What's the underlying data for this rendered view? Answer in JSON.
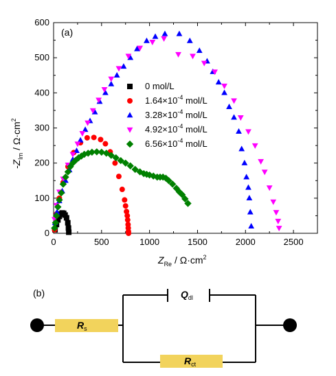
{
  "chart_data": {
    "type": "scatter",
    "panel_label": "(a)",
    "xlabel_main": "Z",
    "xlabel_sub": "Re",
    "xlabel_unit": " / Ω·cm",
    "xlabel_sup": "2",
    "ylabel_prefix": "-Z",
    "ylabel_sub": "Im",
    "ylabel_unit": " / Ω·cm",
    "ylabel_sup": "2",
    "xlim": [
      0,
      2750
    ],
    "ylim": [
      0,
      600
    ],
    "x_ticks": [
      0,
      500,
      1000,
      1500,
      2000,
      2500
    ],
    "y_ticks": [
      0,
      100,
      200,
      300,
      400,
      500,
      600
    ],
    "x_tick_labels": [
      "0",
      "500",
      "1000",
      "1500",
      "2000",
      "2500"
    ],
    "y_tick_labels": [
      "0",
      "100",
      "200",
      "300",
      "400",
      "500",
      "600"
    ],
    "series": [
      {
        "name": "0 mol/L",
        "name_base": "0 mol/L",
        "name_exp": "",
        "name_tail": "",
        "marker": "square",
        "color": "#000000",
        "points": [
          [
            15,
            10
          ],
          [
            30,
            25
          ],
          [
            45,
            38
          ],
          [
            60,
            48
          ],
          [
            75,
            55
          ],
          [
            90,
            58
          ],
          [
            105,
            57
          ],
          [
            120,
            52
          ],
          [
            135,
            44
          ],
          [
            148,
            30
          ],
          [
            155,
            15
          ],
          [
            158,
            3
          ]
        ]
      },
      {
        "name": "1.64×10-4 mol/L",
        "name_base": "1.64×10",
        "name_exp": "-4",
        "name_tail": " mol/L",
        "marker": "circle",
        "color": "#ff0000",
        "points": [
          [
            10,
            10
          ],
          [
            30,
            55
          ],
          [
            60,
            100
          ],
          [
            100,
            145
          ],
          [
            150,
            190
          ],
          [
            210,
            230
          ],
          [
            280,
            258
          ],
          [
            350,
            272
          ],
          [
            420,
            273
          ],
          [
            490,
            267
          ],
          [
            540,
            255
          ],
          [
            590,
            232
          ],
          [
            640,
            200
          ],
          [
            680,
            162
          ],
          [
            715,
            125
          ],
          [
            740,
            95
          ],
          [
            750,
            78
          ],
          [
            760,
            62
          ],
          [
            768,
            50
          ],
          [
            772,
            38
          ],
          [
            776,
            25
          ],
          [
            778,
            15
          ],
          [
            780,
            5
          ],
          [
            781,
            0
          ]
        ]
      },
      {
        "name": "3.28×10-4 mol/L",
        "name_base": "3.28×10",
        "name_exp": "-4",
        "name_tail": " mol/L",
        "marker": "triangle-up",
        "color": "#0000ff",
        "points": [
          [
            15,
            30
          ],
          [
            35,
            60
          ],
          [
            60,
            92
          ],
          [
            90,
            120
          ],
          [
            125,
            150
          ],
          [
            165,
            180
          ],
          [
            200,
            210
          ],
          [
            240,
            235
          ],
          [
            280,
            265
          ],
          [
            330,
            295
          ],
          [
            380,
            320
          ],
          [
            430,
            345
          ],
          [
            480,
            375
          ],
          [
            540,
            400
          ],
          [
            600,
            425
          ],
          [
            660,
            450
          ],
          [
            730,
            475
          ],
          [
            800,
            500
          ],
          [
            870,
            525
          ],
          [
            970,
            548
          ],
          [
            1060,
            560
          ],
          [
            1160,
            568
          ],
          [
            1310,
            568
          ],
          [
            1420,
            548
          ],
          [
            1520,
            520
          ],
          [
            1600,
            490
          ],
          [
            1660,
            460
          ],
          [
            1720,
            430
          ],
          [
            1780,
            400
          ],
          [
            1830,
            360
          ],
          [
            1880,
            330
          ],
          [
            1930,
            290
          ],
          [
            1960,
            240
          ],
          [
            1990,
            200
          ],
          [
            2010,
            160
          ],
          [
            2030,
            130
          ],
          [
            2040,
            100
          ],
          [
            2050,
            60
          ],
          [
            2060,
            20
          ]
        ]
      },
      {
        "name": "4.92×10-4 mol/L",
        "name_base": "4.92×10",
        "name_exp": "-4",
        "name_tail": " mol/L",
        "marker": "triangle-down",
        "color": "#ff00ff",
        "points": [
          [
            10,
            40
          ],
          [
            30,
            80
          ],
          [
            60,
            118
          ],
          [
            100,
            155
          ],
          [
            150,
            195
          ],
          [
            200,
            225
          ],
          [
            250,
            255
          ],
          [
            300,
            285
          ],
          [
            355,
            315
          ],
          [
            410,
            350
          ],
          [
            470,
            380
          ],
          [
            530,
            410
          ],
          [
            600,
            440
          ],
          [
            680,
            470
          ],
          [
            780,
            505
          ],
          [
            900,
            528
          ],
          [
            1030,
            545
          ],
          [
            1150,
            555
          ],
          [
            1300,
            510
          ],
          [
            1450,
            505
          ],
          [
            1570,
            485
          ],
          [
            1680,
            460
          ],
          [
            1780,
            420
          ],
          [
            1880,
            378
          ],
          [
            1950,
            330
          ],
          [
            2030,
            290
          ],
          [
            2100,
            250
          ],
          [
            2160,
            205
          ],
          [
            2200,
            175
          ],
          [
            2250,
            130
          ],
          [
            2290,
            90
          ],
          [
            2320,
            60
          ],
          [
            2340,
            35
          ],
          [
            2350,
            15
          ]
        ]
      },
      {
        "name": "6.56×10-4 mol/L",
        "name_base": "6.56×10",
        "name_exp": "-4",
        "name_tail": " mol/L",
        "marker": "diamond",
        "color": "#008000",
        "points": [
          [
            10,
            15
          ],
          [
            20,
            30
          ],
          [
            30,
            50
          ],
          [
            45,
            75
          ],
          [
            60,
            95
          ],
          [
            80,
            115
          ],
          [
            100,
            140
          ],
          [
            125,
            160
          ],
          [
            150,
            175
          ],
          [
            175,
            190
          ],
          [
            200,
            200
          ],
          [
            230,
            208
          ],
          [
            260,
            215
          ],
          [
            290,
            220
          ],
          [
            320,
            225
          ],
          [
            360,
            228
          ],
          [
            400,
            231
          ],
          [
            450,
            232
          ],
          [
            500,
            231
          ],
          [
            550,
            228
          ],
          [
            600,
            222
          ],
          [
            650,
            215
          ],
          [
            700,
            207
          ],
          [
            750,
            200
          ],
          [
            800,
            192
          ],
          [
            850,
            182
          ],
          [
            900,
            175
          ],
          [
            940,
            170
          ],
          [
            970,
            168
          ],
          [
            1000,
            166
          ],
          [
            1040,
            163
          ],
          [
            1080,
            160
          ],
          [
            1110,
            160
          ],
          [
            1140,
            160
          ],
          [
            1170,
            157
          ],
          [
            1200,
            150
          ],
          [
            1240,
            140
          ],
          [
            1280,
            128
          ],
          [
            1310,
            118
          ],
          [
            1340,
            110
          ],
          [
            1370,
            98
          ],
          [
            1400,
            85
          ]
        ]
      }
    ]
  },
  "circuit": {
    "panel_label": "(b)",
    "rs_label": "R",
    "rs_sub": "s",
    "qdl_label": "Q",
    "qdl_sub": "dl",
    "rct_label": "R",
    "rct_sub": "ct",
    "resistor_color": "#f2d35c"
  }
}
